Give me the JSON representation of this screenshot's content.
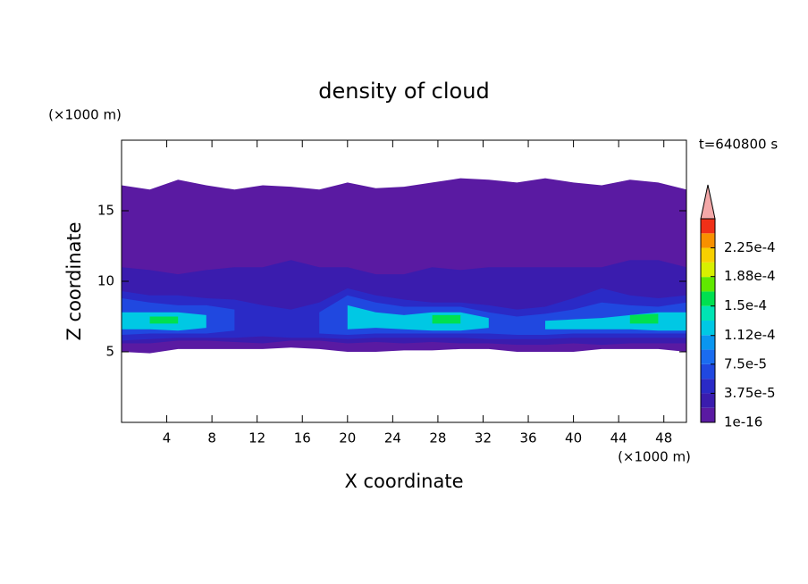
{
  "chart_data": {
    "type": "contour",
    "title": "density of cloud",
    "x_label": "X coordinate",
    "y_label": "Z coordinate",
    "x_unit": "(×1000 m)",
    "y_unit": "(×1000 m)",
    "annotation": "t=640800 s",
    "xlim": [
      0,
      50
    ],
    "ylim": [
      0,
      20
    ],
    "xticks": [
      4,
      8,
      12,
      16,
      20,
      24,
      28,
      32,
      36,
      40,
      44,
      48
    ],
    "yticks": [
      5,
      10,
      15
    ],
    "x": [
      0,
      2.5,
      5,
      7.5,
      10,
      12.5,
      15,
      17.5,
      20,
      22.5,
      25,
      27.5,
      30,
      32.5,
      35,
      37.5,
      40,
      42.5,
      45,
      47.5,
      50
    ],
    "layers": [
      {
        "level": 1e-16,
        "z_top": [
          16.8,
          16.5,
          17.2,
          16.8,
          16.5,
          16.8,
          16.7,
          16.5,
          17.0,
          16.6,
          16.7,
          17.0,
          17.3,
          17.2,
          17.0,
          17.3,
          17.0,
          16.8,
          17.2,
          17.0,
          16.5
        ],
        "z_bottom": [
          5,
          4.9,
          5.2,
          5.2,
          5.2,
          5.2,
          5.3,
          5.2,
          5.0,
          5.0,
          5.1,
          5.1,
          5.2,
          5.2,
          5.0,
          5.0,
          5.0,
          5.2,
          5.2,
          5.2,
          5.0
        ]
      },
      {
        "level": 1.875e-05,
        "z_top": [
          11,
          10.8,
          10.5,
          10.8,
          11,
          11,
          11.5,
          11,
          11,
          10.5,
          10.5,
          11,
          10.8,
          11,
          11,
          11,
          11,
          11,
          11.5,
          11.5,
          11
        ],
        "z_bottom": [
          5.6,
          5.6,
          5.8,
          5.8,
          5.7,
          5.6,
          5.8,
          5.8,
          5.6,
          5.7,
          5.6,
          5.7,
          5.6,
          5.6,
          5.5,
          5.5,
          5.6,
          5.5,
          5.6,
          5.6,
          5.6
        ]
      },
      {
        "level": 3.75e-05,
        "z_top": [
          9.3,
          9.0,
          9.0,
          8.8,
          8.7,
          8.3,
          8.0,
          8.5,
          9.5,
          9.0,
          8.7,
          8.5,
          8.5,
          8.3,
          8.0,
          8.2,
          8.8,
          9.5,
          9.0,
          8.8,
          9.0
        ],
        "z_bottom": [
          5.8,
          5.9,
          6.0,
          6.0,
          6.0,
          6.1,
          6.0,
          6.0,
          5.9,
          6.0,
          6.0,
          6.0,
          6.0,
          5.9,
          5.9,
          5.9,
          6.0,
          6.0,
          6.0,
          6.0,
          6.0
        ]
      },
      {
        "level": 5.63e-05,
        "z_top": [
          8.8,
          8.5,
          8.3,
          8.3,
          8.0,
          null,
          null,
          7.8,
          9.0,
          8.5,
          8.2,
          8.2,
          8.2,
          7.8,
          7.5,
          7.7,
          8.0,
          8.5,
          8.3,
          8.2,
          8.5
        ],
        "z_bottom": [
          6.2,
          6.3,
          6.3,
          6.3,
          6.5,
          null,
          null,
          6.3,
          6.2,
          6.3,
          6.3,
          6.3,
          6.3,
          6.3,
          6.2,
          6.2,
          6.3,
          6.3,
          6.3,
          6.3,
          6.3
        ]
      },
      {
        "level": 0.0001125,
        "z_top": [
          7.8,
          7.8,
          7.8,
          7.6,
          null,
          null,
          null,
          null,
          8.3,
          7.8,
          7.6,
          7.8,
          7.8,
          7.4,
          null,
          7.2,
          7.3,
          7.4,
          7.6,
          7.8,
          7.8
        ],
        "z_bottom": [
          6.6,
          6.6,
          6.5,
          6.7,
          null,
          null,
          null,
          null,
          6.6,
          6.7,
          6.6,
          6.5,
          6.5,
          6.7,
          null,
          6.6,
          6.6,
          6.6,
          6.6,
          6.5,
          6.5
        ]
      },
      {
        "level": 0.00015,
        "z_top": [
          null,
          7.5,
          7.5,
          null,
          null,
          null,
          null,
          null,
          null,
          null,
          null,
          7.6,
          7.6,
          null,
          null,
          null,
          null,
          null,
          7.6,
          7.7,
          null
        ],
        "z_bottom": [
          null,
          7.0,
          7.0,
          null,
          null,
          null,
          null,
          null,
          null,
          null,
          null,
          7.0,
          7.0,
          null,
          null,
          null,
          null,
          null,
          7.0,
          7.0,
          null
        ]
      }
    ],
    "colorbar": {
      "clim": [
        0,
        0.0002625
      ],
      "colors": [
        "#5a1aa2",
        "#3a1cae",
        "#2a2ac6",
        "#2048e0",
        "#1a6cf0",
        "#0a96f0",
        "#00c8e4",
        "#00e4b4",
        "#00e050",
        "#60e800",
        "#d8f000",
        "#f8d000",
        "#f89000",
        "#f03018"
      ],
      "ticks": [
        {
          "value": 1e-16,
          "label": "1e-16"
        },
        {
          "value": 3.75e-05,
          "label": "3.75e-5"
        },
        {
          "value": 7.5e-05,
          "label": "7.5e-5"
        },
        {
          "value": 0.000112,
          "label": "1.12e-4"
        },
        {
          "value": 0.00015,
          "label": "1.5e-4"
        },
        {
          "value": 0.000188,
          "label": "1.88e-4"
        },
        {
          "value": 0.000225,
          "label": "2.25e-4"
        }
      ]
    }
  }
}
